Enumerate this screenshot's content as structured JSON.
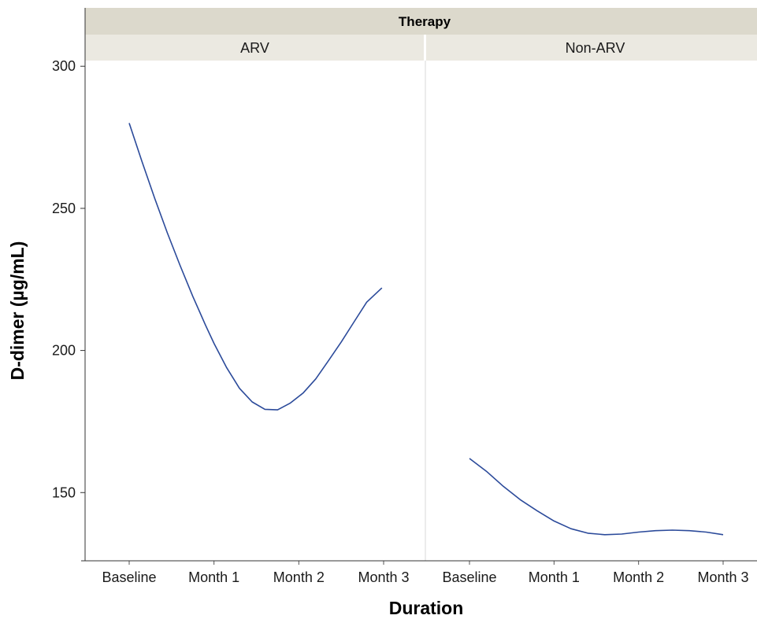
{
  "chart_data": {
    "type": "line",
    "facet_title": "Therapy",
    "xlabel": "Duration",
    "ylabel": "D-dimer (µg/mL)",
    "ylim": [
      126,
      302
    ],
    "yticks": [
      150,
      200,
      250,
      300
    ],
    "categories": [
      "Baseline",
      "Month 1",
      "Month 2",
      "Month 3"
    ],
    "grid": false,
    "line_color": "#2b4a9a",
    "panels": [
      {
        "name": "ARV",
        "x": [
          0,
          0.15,
          0.3,
          0.45,
          0.6,
          0.75,
          0.9,
          1.0,
          1.15,
          1.3,
          1.45,
          1.6,
          1.75,
          1.9,
          2.05,
          2.2,
          2.35,
          2.5,
          2.65,
          2.8,
          2.98
        ],
        "values": [
          280,
          266.5,
          253.6,
          241.4,
          229.9,
          219.0,
          208.9,
          202.5,
          193.9,
          186.7,
          181.9,
          179.3,
          179.1,
          181.5,
          185.0,
          190.0,
          196.4,
          203.0,
          210.0,
          217.0,
          222.0
        ]
      },
      {
        "name": "Non-ARV",
        "x": [
          0,
          0.2,
          0.4,
          0.6,
          0.8,
          1.0,
          1.2,
          1.4,
          1.6,
          1.8,
          2.0,
          2.2,
          2.4,
          2.6,
          2.8,
          3.0
        ],
        "values": [
          162,
          157.5,
          152.2,
          147.5,
          143.6,
          140.0,
          137.3,
          135.7,
          135.2,
          135.4,
          136.1,
          136.6,
          136.8,
          136.6,
          136.1,
          135.2
        ]
      }
    ]
  }
}
